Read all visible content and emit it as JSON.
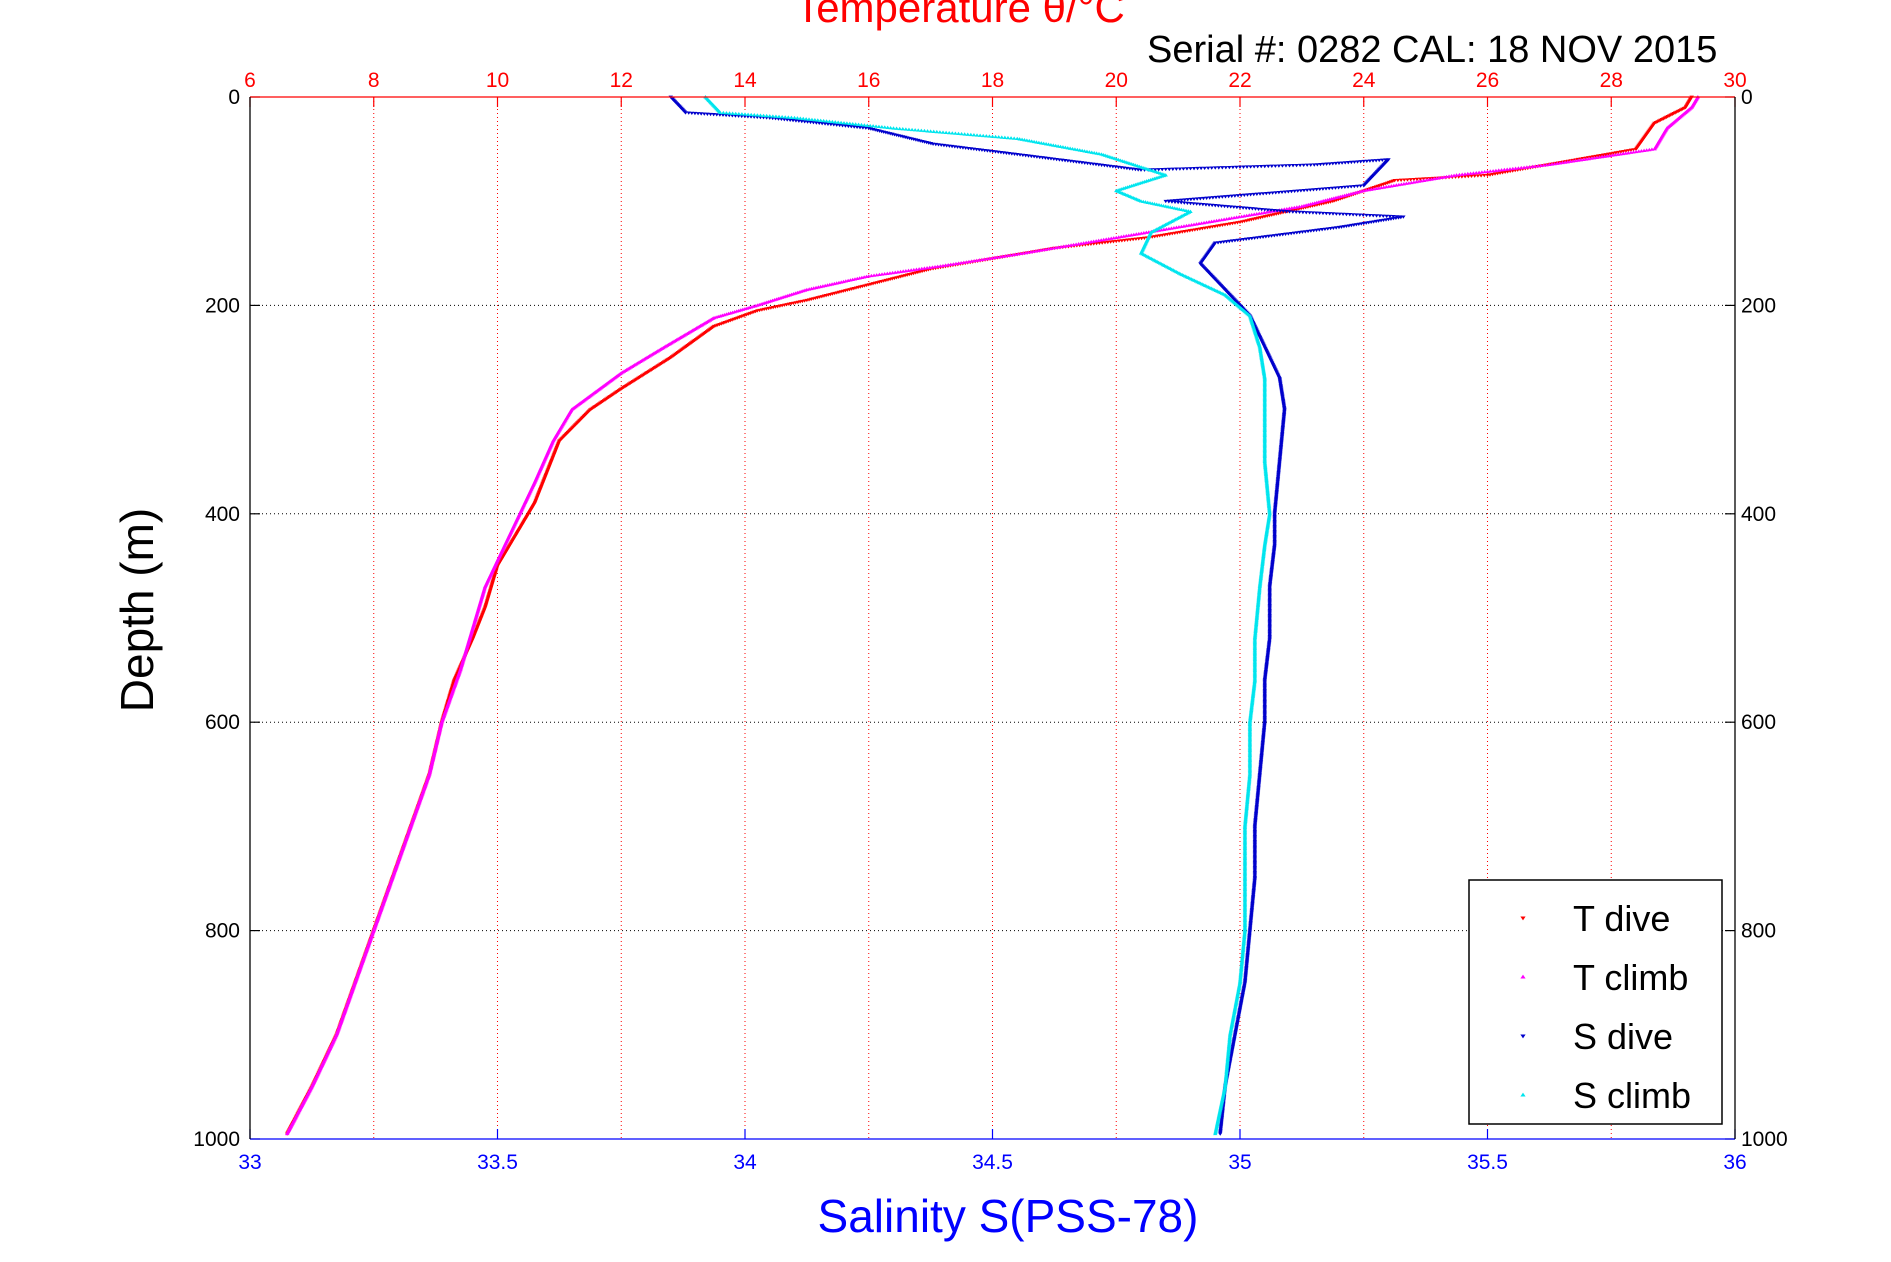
{
  "chart_data": {
    "type": "scatter",
    "title": "Temperature θ/°C",
    "subtitle": "Serial #: 0282  CAL: 18 NOV 2015",
    "xlabel_bottom": "Salinity S(PSS-78)",
    "xlabel_top": "Temperature θ/°C",
    "ylabel": "Depth (m)",
    "xlim_salinity": [
      33,
      36
    ],
    "xlim_temperature": [
      6,
      30
    ],
    "ylim_depth": [
      0,
      1000
    ],
    "y_inverted": true,
    "salinity_ticks": [
      "33",
      "33.5",
      "34",
      "34.5",
      "35",
      "35.5",
      "36"
    ],
    "temperature_ticks": [
      "6",
      "8",
      "10",
      "12",
      "14",
      "16",
      "18",
      "20",
      "22",
      "24",
      "26",
      "28",
      "30"
    ],
    "depth_ticks": [
      "0",
      "200",
      "400",
      "600",
      "800",
      "1000"
    ],
    "grid": true,
    "legend_position": "bottom-right",
    "colors": {
      "T dive": "#ff0000",
      "T climb": "#ff00ff",
      "S dive": "#0000cc",
      "S climb": "#00e5ee",
      "temperature_axis": "#ff0000",
      "salinity_axis": "#0000ff"
    },
    "series": [
      {
        "name": "T dive",
        "axis": "temperature",
        "marker": "triangle-down",
        "points": [
          [
            29.3,
            0
          ],
          [
            29.2,
            10
          ],
          [
            28.7,
            25
          ],
          [
            28.4,
            50
          ],
          [
            26.0,
            75
          ],
          [
            24.5,
            80
          ],
          [
            23.5,
            100
          ],
          [
            22.0,
            120
          ],
          [
            20.5,
            135
          ],
          [
            19.0,
            145
          ],
          [
            18.0,
            155
          ],
          [
            17.0,
            165
          ],
          [
            16.0,
            180
          ],
          [
            15.0,
            195
          ],
          [
            14.2,
            205
          ],
          [
            13.5,
            220
          ],
          [
            12.8,
            250
          ],
          [
            12.0,
            280
          ],
          [
            11.5,
            300
          ],
          [
            11.0,
            330
          ],
          [
            10.8,
            360
          ],
          [
            10.6,
            390
          ],
          [
            10.4,
            410
          ],
          [
            10.0,
            450
          ],
          [
            9.8,
            490
          ],
          [
            9.6,
            520
          ],
          [
            9.3,
            560
          ],
          [
            9.1,
            600
          ],
          [
            8.9,
            650
          ],
          [
            8.6,
            700
          ],
          [
            8.3,
            750
          ],
          [
            8.0,
            800
          ],
          [
            7.7,
            850
          ],
          [
            7.4,
            900
          ],
          [
            7.0,
            950
          ],
          [
            6.6,
            995
          ]
        ]
      },
      {
        "name": "T climb",
        "axis": "temperature",
        "marker": "triangle-up",
        "points": [
          [
            29.4,
            0
          ],
          [
            29.3,
            10
          ],
          [
            28.9,
            30
          ],
          [
            28.7,
            50
          ],
          [
            27.0,
            65
          ],
          [
            25.5,
            75
          ],
          [
            24.0,
            90
          ],
          [
            23.0,
            105
          ],
          [
            21.5,
            120
          ],
          [
            20.0,
            135
          ],
          [
            18.5,
            150
          ],
          [
            17.2,
            162
          ],
          [
            16.0,
            172
          ],
          [
            15.0,
            185
          ],
          [
            14.2,
            200
          ],
          [
            13.5,
            212
          ],
          [
            12.7,
            240
          ],
          [
            12.0,
            265
          ],
          [
            11.2,
            300
          ],
          [
            10.9,
            330
          ],
          [
            10.6,
            370
          ],
          [
            10.2,
            420
          ],
          [
            9.8,
            470
          ],
          [
            9.6,
            510
          ],
          [
            9.4,
            550
          ],
          [
            9.1,
            600
          ],
          [
            8.9,
            650
          ],
          [
            8.6,
            700
          ],
          [
            8.3,
            750
          ],
          [
            8.0,
            800
          ],
          [
            7.7,
            850
          ],
          [
            7.4,
            900
          ],
          [
            7.0,
            950
          ],
          [
            6.6,
            995
          ]
        ]
      },
      {
        "name": "S dive",
        "axis": "salinity",
        "marker": "triangle-down",
        "points": [
          [
            33.85,
            0
          ],
          [
            33.88,
            15
          ],
          [
            34.05,
            20
          ],
          [
            34.25,
            30
          ],
          [
            34.38,
            45
          ],
          [
            34.55,
            55
          ],
          [
            34.8,
            70
          ],
          [
            35.15,
            65
          ],
          [
            35.3,
            60
          ],
          [
            35.25,
            85
          ],
          [
            34.85,
            100
          ],
          [
            35.1,
            110
          ],
          [
            35.33,
            115
          ],
          [
            35.2,
            125
          ],
          [
            34.95,
            140
          ],
          [
            34.92,
            160
          ],
          [
            34.98,
            190
          ],
          [
            35.02,
            210
          ],
          [
            35.05,
            240
          ],
          [
            35.08,
            270
          ],
          [
            35.09,
            300
          ],
          [
            35.08,
            350
          ],
          [
            35.07,
            400
          ],
          [
            35.07,
            430
          ],
          [
            35.06,
            470
          ],
          [
            35.06,
            520
          ],
          [
            35.05,
            560
          ],
          [
            35.05,
            600
          ],
          [
            35.04,
            650
          ],
          [
            35.03,
            700
          ],
          [
            35.03,
            750
          ],
          [
            35.02,
            800
          ],
          [
            35.01,
            850
          ],
          [
            34.99,
            900
          ],
          [
            34.97,
            950
          ],
          [
            34.96,
            995
          ]
        ]
      },
      {
        "name": "S climb",
        "axis": "salinity",
        "marker": "triangle-up",
        "points": [
          [
            33.92,
            0
          ],
          [
            33.95,
            15
          ],
          [
            34.1,
            20
          ],
          [
            34.3,
            30
          ],
          [
            34.55,
            40
          ],
          [
            34.72,
            55
          ],
          [
            34.85,
            75
          ],
          [
            34.75,
            90
          ],
          [
            34.8,
            100
          ],
          [
            34.9,
            110
          ],
          [
            34.82,
            130
          ],
          [
            34.8,
            150
          ],
          [
            34.88,
            170
          ],
          [
            34.97,
            190
          ],
          [
            35.02,
            210
          ],
          [
            35.04,
            240
          ],
          [
            35.05,
            270
          ],
          [
            35.05,
            300
          ],
          [
            35.05,
            350
          ],
          [
            35.06,
            400
          ],
          [
            35.05,
            430
          ],
          [
            35.04,
            470
          ],
          [
            35.03,
            520
          ],
          [
            35.03,
            560
          ],
          [
            35.02,
            600
          ],
          [
            35.02,
            650
          ],
          [
            35.01,
            700
          ],
          [
            35.01,
            750
          ],
          [
            35.01,
            800
          ],
          [
            35.0,
            850
          ],
          [
            34.98,
            900
          ],
          [
            34.97,
            950
          ],
          [
            34.95,
            995
          ]
        ]
      }
    ]
  }
}
